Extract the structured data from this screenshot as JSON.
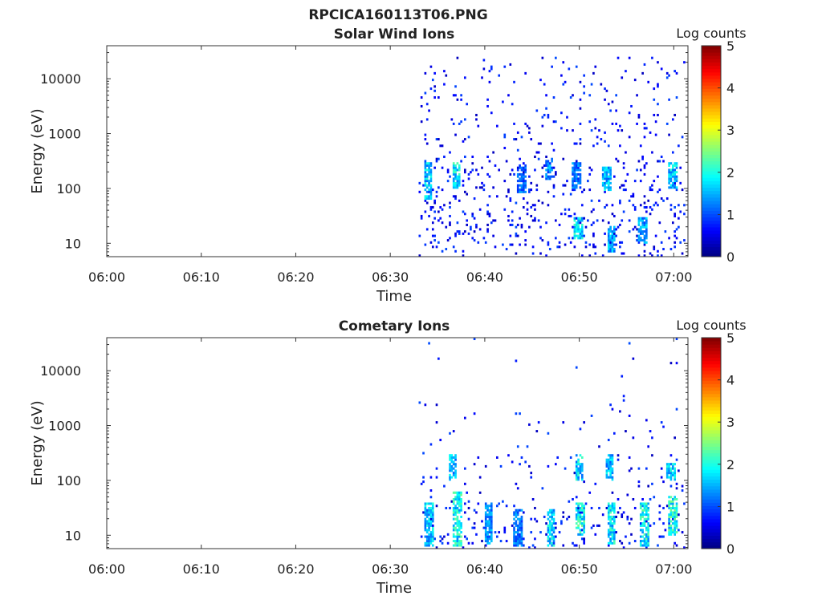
{
  "figure": {
    "filename": "RPCICA160113T06.PNG"
  },
  "colorbar": {
    "label": "Log counts",
    "range": [
      0,
      5
    ],
    "ticks": [
      "0",
      "1",
      "2",
      "3",
      "4",
      "5"
    ],
    "colormap": "jet"
  },
  "chart_data": [
    {
      "type": "heatmap",
      "title": "Solar Wind Ions",
      "xlabel": "Time",
      "ylabel": "Energy (eV)",
      "x_ticks": [
        "06:00",
        "06:10",
        "06:20",
        "06:30",
        "06:40",
        "06:50",
        "07:00"
      ],
      "x_range_minutes": [
        0,
        61.5
      ],
      "y_ticks": [
        "10",
        "100",
        "1000",
        "10000"
      ],
      "y_scale": "log",
      "ylim": [
        5.7,
        40000
      ],
      "data_start": "06:33",
      "clusters": [
        {
          "t": 33.9,
          "e": [
            60,
            300
          ],
          "v": 2.0
        },
        {
          "t": 36.9,
          "e": [
            100,
            300
          ],
          "v": 2.2
        },
        {
          "t": 43.8,
          "e": [
            80,
            250
          ],
          "v": 1.4
        },
        {
          "t": 46.7,
          "e": [
            150,
            350
          ],
          "v": 1.6
        },
        {
          "t": 49.8,
          "e": [
            12,
            30
          ],
          "v": 2.2
        },
        {
          "t": 49.6,
          "e": [
            100,
            300
          ],
          "v": 1.5
        },
        {
          "t": 52.8,
          "e": [
            90,
            250
          ],
          "v": 1.9
        },
        {
          "t": 53.3,
          "e": [
            7,
            20
          ],
          "v": 1.8
        },
        {
          "t": 56.6,
          "e": [
            10,
            30
          ],
          "v": 1.7
        },
        {
          "t": 59.8,
          "e": [
            100,
            300
          ],
          "v": 2.0
        }
      ]
    },
    {
      "type": "heatmap",
      "title": "Cometary Ions",
      "xlabel": "Time",
      "ylabel": "Energy (eV)",
      "x_ticks": [
        "06:00",
        "06:10",
        "06:20",
        "06:30",
        "06:40",
        "06:50",
        "07:00"
      ],
      "x_range_minutes": [
        0,
        61.5
      ],
      "y_ticks": [
        "10",
        "100",
        "1000",
        "10000"
      ],
      "y_scale": "log",
      "ylim": [
        5.7,
        40000
      ],
      "data_start": "06:33",
      "clusters": [
        {
          "t": 34.0,
          "e": [
            6,
            40
          ],
          "v": 2.0
        },
        {
          "t": 37.0,
          "e": [
            6,
            60
          ],
          "v": 2.3
        },
        {
          "t": 40.3,
          "e": [
            7,
            40
          ],
          "v": 1.6
        },
        {
          "t": 43.4,
          "e": [
            6,
            30
          ],
          "v": 1.5
        },
        {
          "t": 46.9,
          "e": [
            6,
            30
          ],
          "v": 2.1
        },
        {
          "t": 50.0,
          "e": [
            10,
            40
          ],
          "v": 2.4
        },
        {
          "t": 53.3,
          "e": [
            7,
            40
          ],
          "v": 2.2
        },
        {
          "t": 56.8,
          "e": [
            6,
            40
          ],
          "v": 2.3
        },
        {
          "t": 59.8,
          "e": [
            10,
            50
          ],
          "v": 2.4
        },
        {
          "t": 36.5,
          "e": [
            100,
            300
          ],
          "v": 1.9
        },
        {
          "t": 49.9,
          "e": [
            100,
            300
          ],
          "v": 2.1
        },
        {
          "t": 53.1,
          "e": [
            100,
            300
          ],
          "v": 1.9
        },
        {
          "t": 59.6,
          "e": [
            100,
            200
          ],
          "v": 2.0
        }
      ]
    }
  ]
}
